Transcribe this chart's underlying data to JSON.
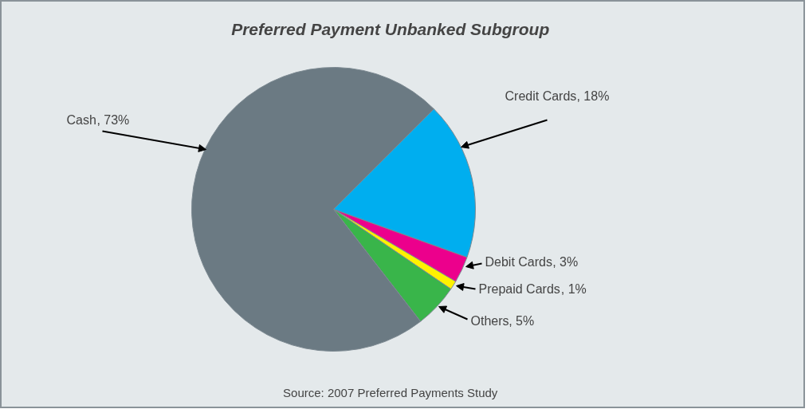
{
  "chart_data": {
    "type": "pie",
    "title": "Preferred Payment Unbanked Subgroup",
    "categories": [
      "Credit Cards",
      "Debit Cards",
      "Prepaid Cards",
      "Others",
      "Cash"
    ],
    "values": [
      18,
      3,
      1,
      5,
      73
    ],
    "colors": [
      "#00aeef",
      "#ec008c",
      "#fff200",
      "#39b54a",
      "#6b7a83"
    ],
    "value_labels": [
      ", 18%",
      ", 3%",
      ", 1%",
      ", 5%",
      ", 73%"
    ],
    "annotations": [
      "Source: 2007 Preferred Payments Study"
    ],
    "legend": false
  }
}
